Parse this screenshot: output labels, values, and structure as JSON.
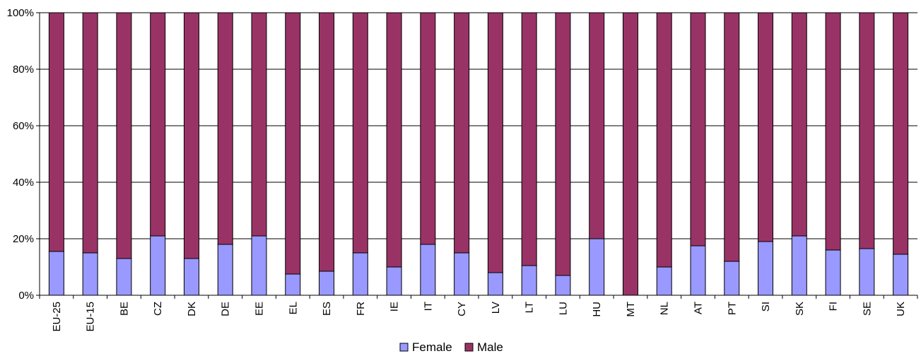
{
  "chart_data": {
    "type": "bar",
    "stacked": true,
    "percent_stacked": true,
    "categories": [
      "EU-25",
      "EU-15",
      "BE",
      "CZ",
      "DK",
      "DE",
      "EE",
      "EL",
      "ES",
      "FR",
      "IE",
      "IT",
      "CY",
      "LV",
      "LT",
      "LU",
      "HU",
      "MT",
      "NL",
      "AT",
      "PT",
      "SI",
      "SK",
      "FI",
      "SE",
      "UK"
    ],
    "series": [
      {
        "name": "Female",
        "color": "#9999ff",
        "values": [
          15.5,
          15,
          13,
          21,
          13,
          18,
          21,
          7.5,
          8.5,
          15,
          10,
          18,
          15,
          8,
          10.5,
          7,
          20,
          0,
          10,
          17.5,
          12,
          19,
          21,
          16,
          16.5,
          14.5
        ]
      },
      {
        "name": "Male",
        "color": "#993366",
        "values": [
          84.5,
          85,
          87,
          79,
          87,
          82,
          79,
          92.5,
          91.5,
          85,
          90,
          82,
          85,
          92,
          89.5,
          93,
          80,
          100,
          90,
          82.5,
          88,
          81,
          79,
          84,
          83.5,
          85.5
        ]
      }
    ],
    "y_ticks": [
      "0%",
      "20%",
      "40%",
      "60%",
      "80%",
      "100%"
    ],
    "ylim": [
      0,
      100
    ],
    "grid": true,
    "legend_position": "bottom",
    "title": "",
    "xlabel": "",
    "ylabel": ""
  }
}
